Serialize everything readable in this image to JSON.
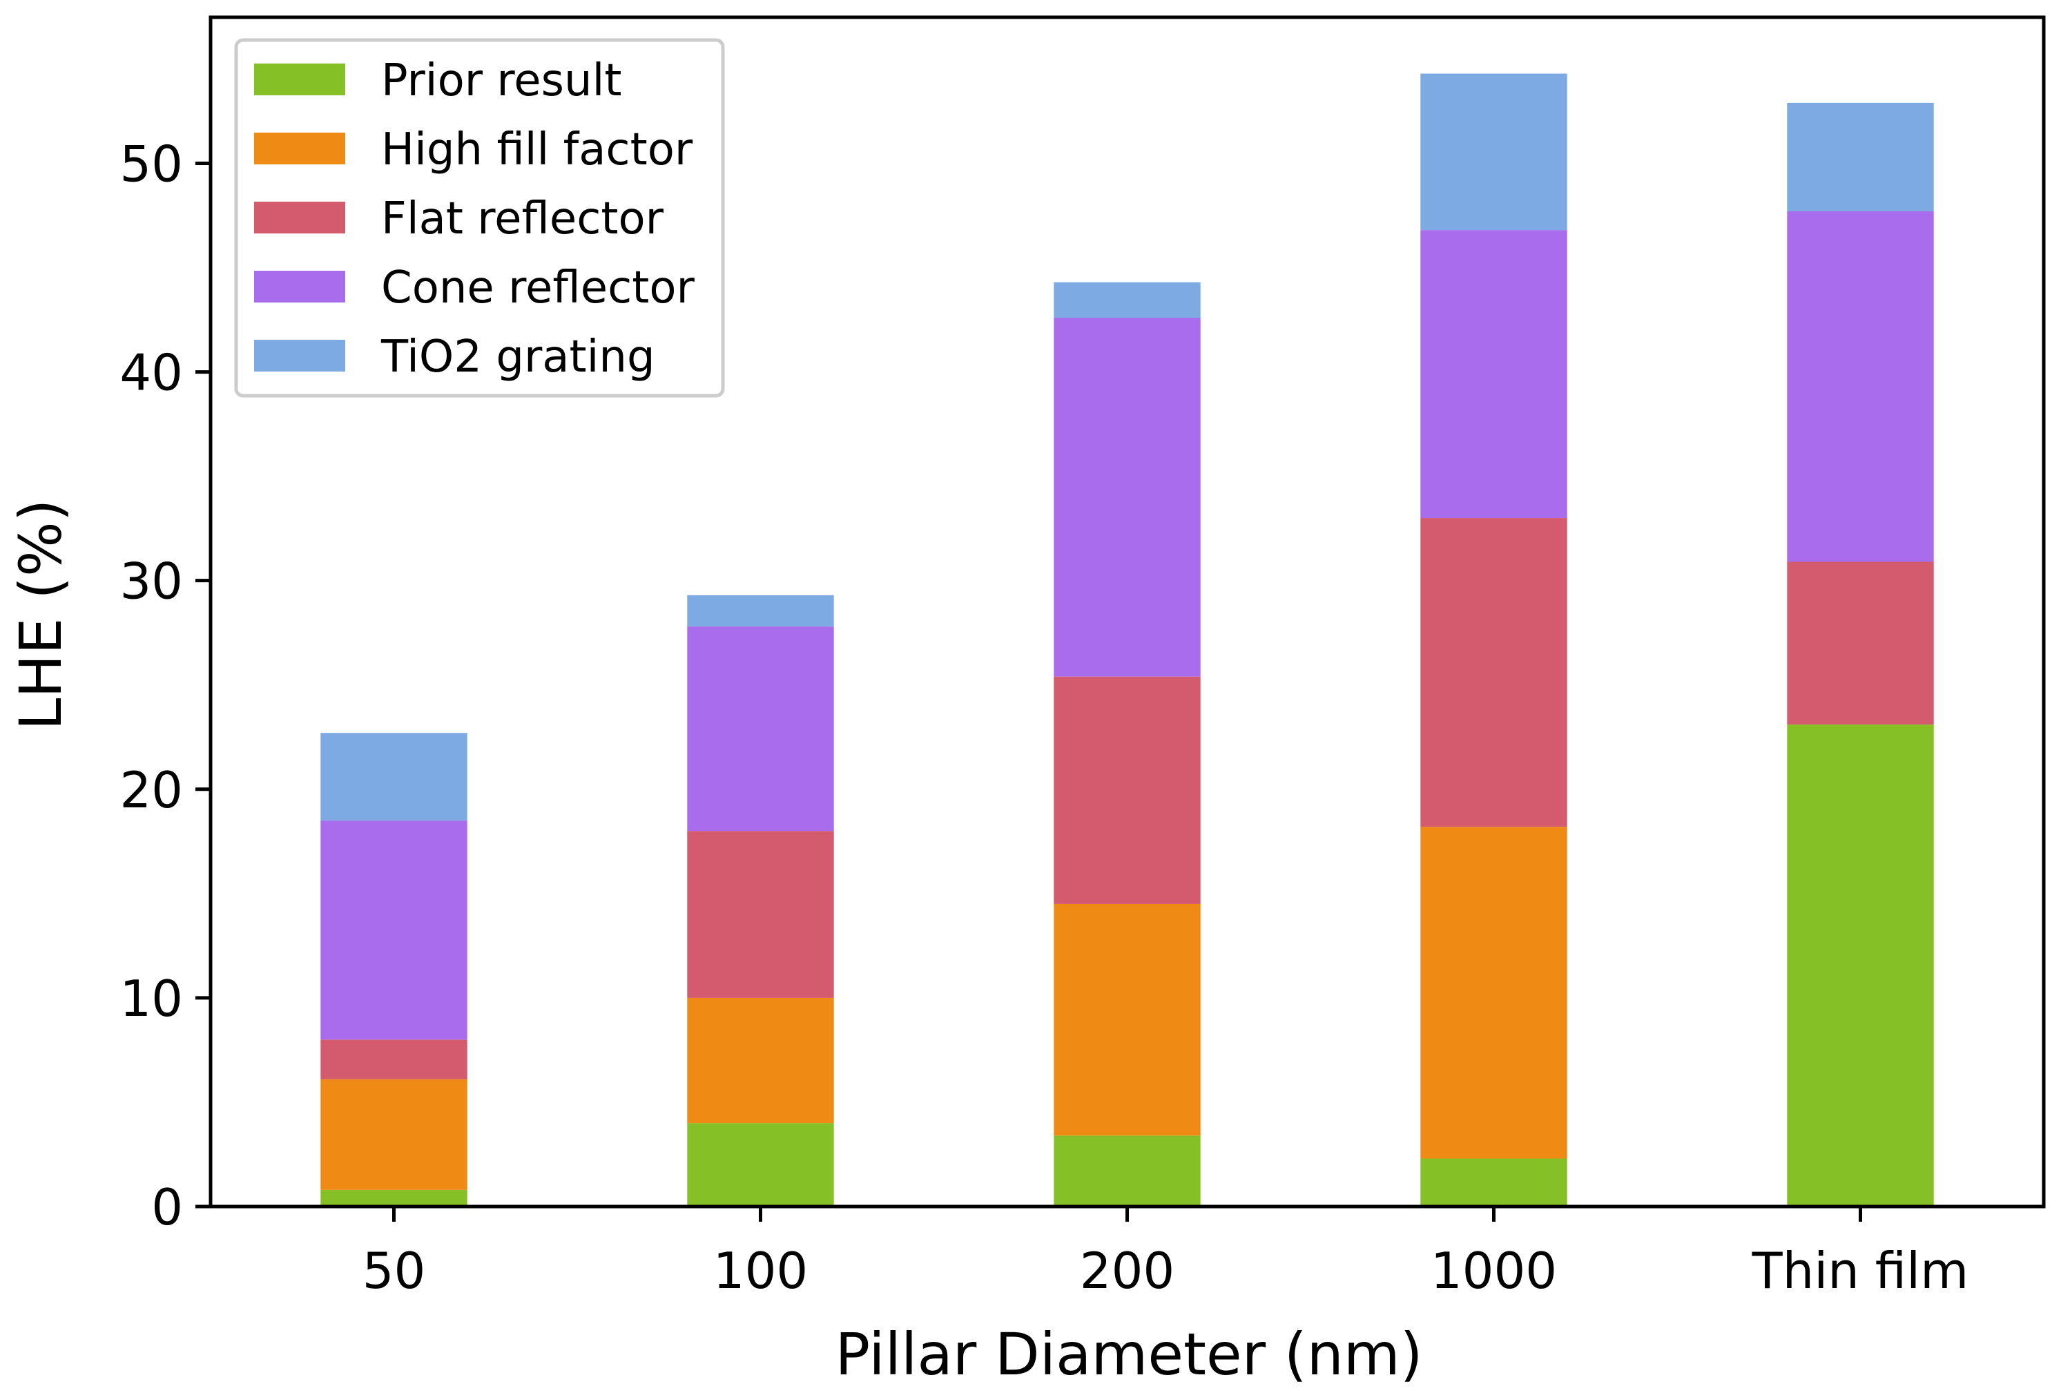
{
  "chart_data": {
    "type": "bar",
    "stacked": true,
    "title": "",
    "xlabel": "Pillar Diameter (nm)",
    "ylabel": "LHE (%)",
    "ylim": [
      0,
      57
    ],
    "yticks": [
      0,
      10,
      20,
      30,
      40,
      50
    ],
    "grid": false,
    "legend_position": "top-left",
    "categories": [
      "50",
      "100",
      "200",
      "1000",
      "Thin film"
    ],
    "series": [
      {
        "name": "Prior result",
        "color": "#86c027",
        "values": [
          0.8,
          4.0,
          3.4,
          2.3,
          23.1
        ]
      },
      {
        "name": "High fill factor",
        "color": "#ef8b15",
        "values": [
          5.3,
          6.0,
          11.1,
          15.9,
          0
        ]
      },
      {
        "name": "Flat reflector",
        "color": "#d45a6d",
        "values": [
          1.9,
          8.0,
          10.9,
          14.8,
          7.8
        ]
      },
      {
        "name": "Cone reflector",
        "color": "#a96ced",
        "values": [
          10.5,
          9.8,
          17.2,
          13.8,
          16.8
        ]
      },
      {
        "name": "TiO2 grating",
        "color": "#7eaae4",
        "values": [
          4.2,
          1.5,
          1.7,
          7.5,
          5.2
        ]
      }
    ]
  }
}
